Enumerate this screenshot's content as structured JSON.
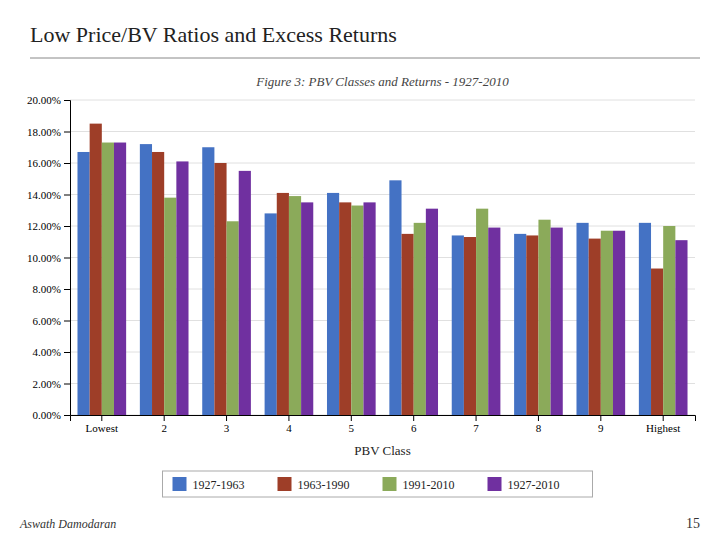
{
  "chart_data": {
    "type": "bar",
    "title": "Low Price/BV Ratios and Excess Returns",
    "subtitle": "Figure 3: PBV Classes and Returns - 1927-2010",
    "x_label": "PBV Class",
    "annotations": [
      "Aswath Damodaran",
      "15"
    ],
    "categories": [
      "Lowest",
      "2",
      "3",
      "4",
      "5",
      "6",
      "7",
      "8",
      "9",
      "Highest"
    ],
    "series": [
      {
        "name": "1927-1963",
        "color": "#4472C4",
        "values": [
          0.167,
          0.172,
          0.17,
          0.128,
          0.141,
          0.149,
          0.114,
          0.115,
          0.122,
          0.122
        ]
      },
      {
        "name": "1963-1990",
        "color": "#9E3E28",
        "values": [
          0.185,
          0.167,
          0.16,
          0.141,
          0.135,
          0.115,
          0.113,
          0.114,
          0.112,
          0.093
        ]
      },
      {
        "name": "1991-2010",
        "color": "#8BAA5A",
        "values": [
          0.173,
          0.138,
          0.123,
          0.139,
          0.133,
          0.122,
          0.131,
          0.124,
          0.117,
          0.12
        ]
      },
      {
        "name": "1927-2010",
        "color": "#7030A0",
        "values": [
          0.173,
          0.161,
          0.155,
          0.135,
          0.135,
          0.131,
          0.119,
          0.119,
          0.117,
          0.111
        ]
      }
    ],
    "ylim": [
      0.0,
      0.2
    ],
    "yticks": [
      {
        "value": 0.0,
        "label": "0.00%"
      },
      {
        "value": 0.02,
        "label": "2.00%"
      },
      {
        "value": 0.04,
        "label": "4.00%"
      },
      {
        "value": 0.06,
        "label": "6.00%"
      },
      {
        "value": 0.08,
        "label": "8.00%"
      },
      {
        "value": 0.1,
        "label": "10.00%"
      },
      {
        "value": 0.12,
        "label": "12.00%"
      },
      {
        "value": 0.14,
        "label": "14.00%"
      },
      {
        "value": 0.16,
        "label": "16.00%"
      },
      {
        "value": 0.18,
        "label": "18.00%"
      },
      {
        "value": 0.2,
        "label": "20.00%"
      }
    ],
    "grid": true,
    "legend": "bottom"
  }
}
